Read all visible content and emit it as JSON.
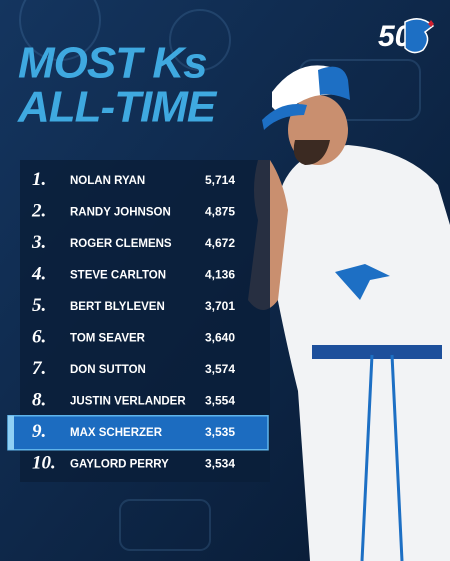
{
  "logo": "50",
  "title": [
    "MOST Ks",
    "ALL-TIME"
  ],
  "table": {
    "highlight_row": 8,
    "rows": [
      [
        "1.",
        "NOLAN RYAN",
        "5,714"
      ],
      [
        "2.",
        "RANDY JOHNSON",
        "4,875"
      ],
      [
        "3.",
        "ROGER CLEMENS",
        "4,672"
      ],
      [
        "4.",
        "STEVE CARLTON",
        "4,136"
      ],
      [
        "5.",
        "BERT BLYLEVEN",
        "3,701"
      ],
      [
        "6.",
        "TOM SEAVER",
        "3,640"
      ],
      [
        "7.",
        "DON SUTTON",
        "3,574"
      ],
      [
        "8.",
        "JUSTIN VERLANDER",
        "3,554"
      ],
      [
        "9.",
        "MAX SCHERZER",
        "3,535"
      ],
      [
        "10.",
        "GAYLORD PERRY",
        "3,534"
      ]
    ]
  }
}
